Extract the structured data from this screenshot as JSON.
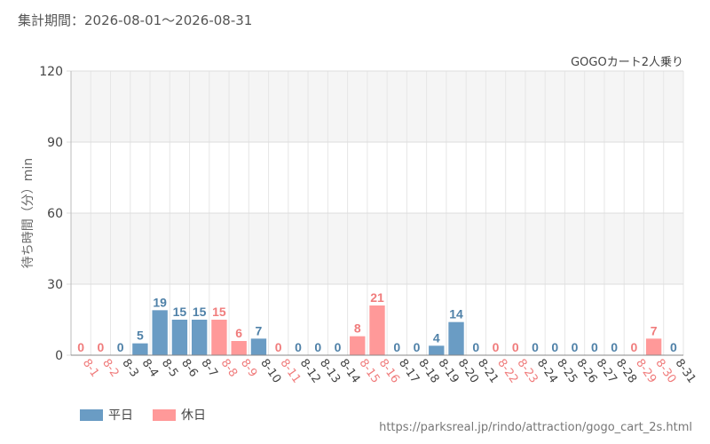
{
  "header": {
    "period_label": "集計期間：2026-08-01～2026-08-31",
    "attraction_name": "GOGOカート2人乗り"
  },
  "source_url": "https://parksreal.jp/rindo/attraction/gogo_cart_2s.html",
  "chart_data": {
    "type": "bar",
    "title": "",
    "ylabel": "待ち時間（分）min",
    "xlabel": "",
    "ylim": [
      0,
      120
    ],
    "yticks": [
      0,
      30,
      60,
      90,
      120
    ],
    "grid": true,
    "legend_position": "bottom-left",
    "categories": [
      "8-1",
      "8-2",
      "8-3",
      "8-4",
      "8-5",
      "8-6",
      "8-7",
      "8-8",
      "8-9",
      "8-10",
      "8-11",
      "8-12",
      "8-13",
      "8-14",
      "8-15",
      "8-16",
      "8-17",
      "8-18",
      "8-19",
      "8-20",
      "8-21",
      "8-22",
      "8-23",
      "8-24",
      "8-25",
      "8-26",
      "8-27",
      "8-28",
      "8-29",
      "8-30",
      "8-31"
    ],
    "values": [
      0,
      0,
      0,
      5,
      19,
      15,
      15,
      15,
      6,
      7,
      0,
      0,
      0,
      0,
      8,
      21,
      0,
      0,
      4,
      14,
      0,
      0,
      0,
      0,
      0,
      0,
      0,
      0,
      0,
      7,
      0
    ],
    "day_type": [
      "holiday",
      "holiday",
      "weekday",
      "weekday",
      "weekday",
      "weekday",
      "weekday",
      "holiday",
      "holiday",
      "weekday",
      "holiday",
      "weekday",
      "weekday",
      "weekday",
      "holiday",
      "holiday",
      "weekday",
      "weekday",
      "weekday",
      "weekday",
      "weekday",
      "holiday",
      "holiday",
      "weekday",
      "weekday",
      "weekday",
      "weekday",
      "weekday",
      "holiday",
      "holiday",
      "weekday"
    ],
    "series": [
      {
        "name": "平日",
        "key": "weekday",
        "color": "#6a9cc4",
        "label_color": "#4f81a8"
      },
      {
        "name": "休日",
        "key": "holiday",
        "color": "#ff9999",
        "label_color": "#f07c7c"
      }
    ]
  }
}
